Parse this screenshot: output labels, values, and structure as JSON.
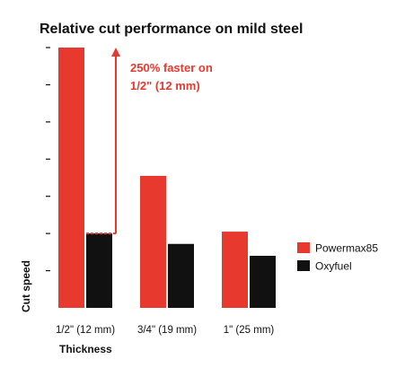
{
  "chart_data": {
    "type": "bar",
    "title": "Relative cut performance on mild steel",
    "xlabel": "Thickness",
    "ylabel": "Cut speed",
    "categories": [
      "1/2\" (12 mm)",
      "3/4\"  (19 mm)",
      "1\" (25 mm)"
    ],
    "series": [
      {
        "name": "Powermax85",
        "color": "#e8392f",
        "values": [
          7.0,
          3.55,
          2.05
        ]
      },
      {
        "name": "Oxyfuel",
        "color": "#111111",
        "values": [
          2.0,
          1.72,
          1.4
        ]
      }
    ],
    "ylim": [
      0,
      7
    ],
    "y_ticks": [
      1,
      2,
      3,
      4,
      5,
      6,
      7
    ],
    "y_tick_labels_shown": false,
    "grid": false,
    "legend_position": "right",
    "annotation": {
      "lines": [
        "250% faster on",
        "1/2\" (12 mm)"
      ],
      "color": "#e8392f",
      "category": "1/2\" (12 mm)"
    }
  }
}
